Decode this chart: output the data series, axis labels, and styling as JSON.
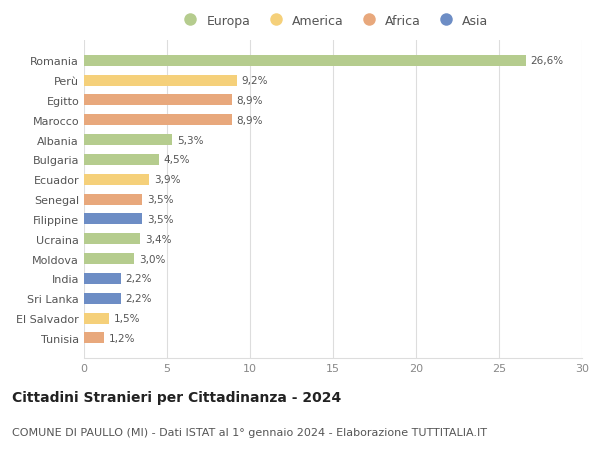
{
  "countries": [
    "Romania",
    "Perù",
    "Egitto",
    "Marocco",
    "Albania",
    "Bulgaria",
    "Ecuador",
    "Senegal",
    "Filippine",
    "Ucraina",
    "Moldova",
    "India",
    "Sri Lanka",
    "El Salvador",
    "Tunisia"
  ],
  "values": [
    26.6,
    9.2,
    8.9,
    8.9,
    5.3,
    4.5,
    3.9,
    3.5,
    3.5,
    3.4,
    3.0,
    2.2,
    2.2,
    1.5,
    1.2
  ],
  "labels": [
    "26,6%",
    "9,2%",
    "8,9%",
    "8,9%",
    "5,3%",
    "4,5%",
    "3,9%",
    "3,5%",
    "3,5%",
    "3,4%",
    "3,0%",
    "2,2%",
    "2,2%",
    "1,5%",
    "1,2%"
  ],
  "continents": [
    "Europa",
    "America",
    "Africa",
    "Africa",
    "Europa",
    "Europa",
    "America",
    "Africa",
    "Asia",
    "Europa",
    "Europa",
    "Asia",
    "Asia",
    "America",
    "Africa"
  ],
  "colors": {
    "Europa": "#b5cc8e",
    "America": "#f5d07a",
    "Africa": "#e8a87c",
    "Asia": "#6d8dc5"
  },
  "legend_order": [
    "Europa",
    "America",
    "Africa",
    "Asia"
  ],
  "xlim": [
    0,
    30
  ],
  "xticks": [
    0,
    5,
    10,
    15,
    20,
    25,
    30
  ],
  "title": "Cittadini Stranieri per Cittadinanza - 2024",
  "subtitle": "COMUNE DI PAULLO (MI) - Dati ISTAT al 1° gennaio 2024 - Elaborazione TUTTITALIA.IT",
  "title_fontsize": 10,
  "subtitle_fontsize": 8,
  "bar_height": 0.55,
  "background_color": "#ffffff",
  "grid_color": "#dddddd",
  "label_fontsize": 7.5,
  "ytick_fontsize": 8,
  "xtick_fontsize": 8,
  "legend_fontsize": 9
}
